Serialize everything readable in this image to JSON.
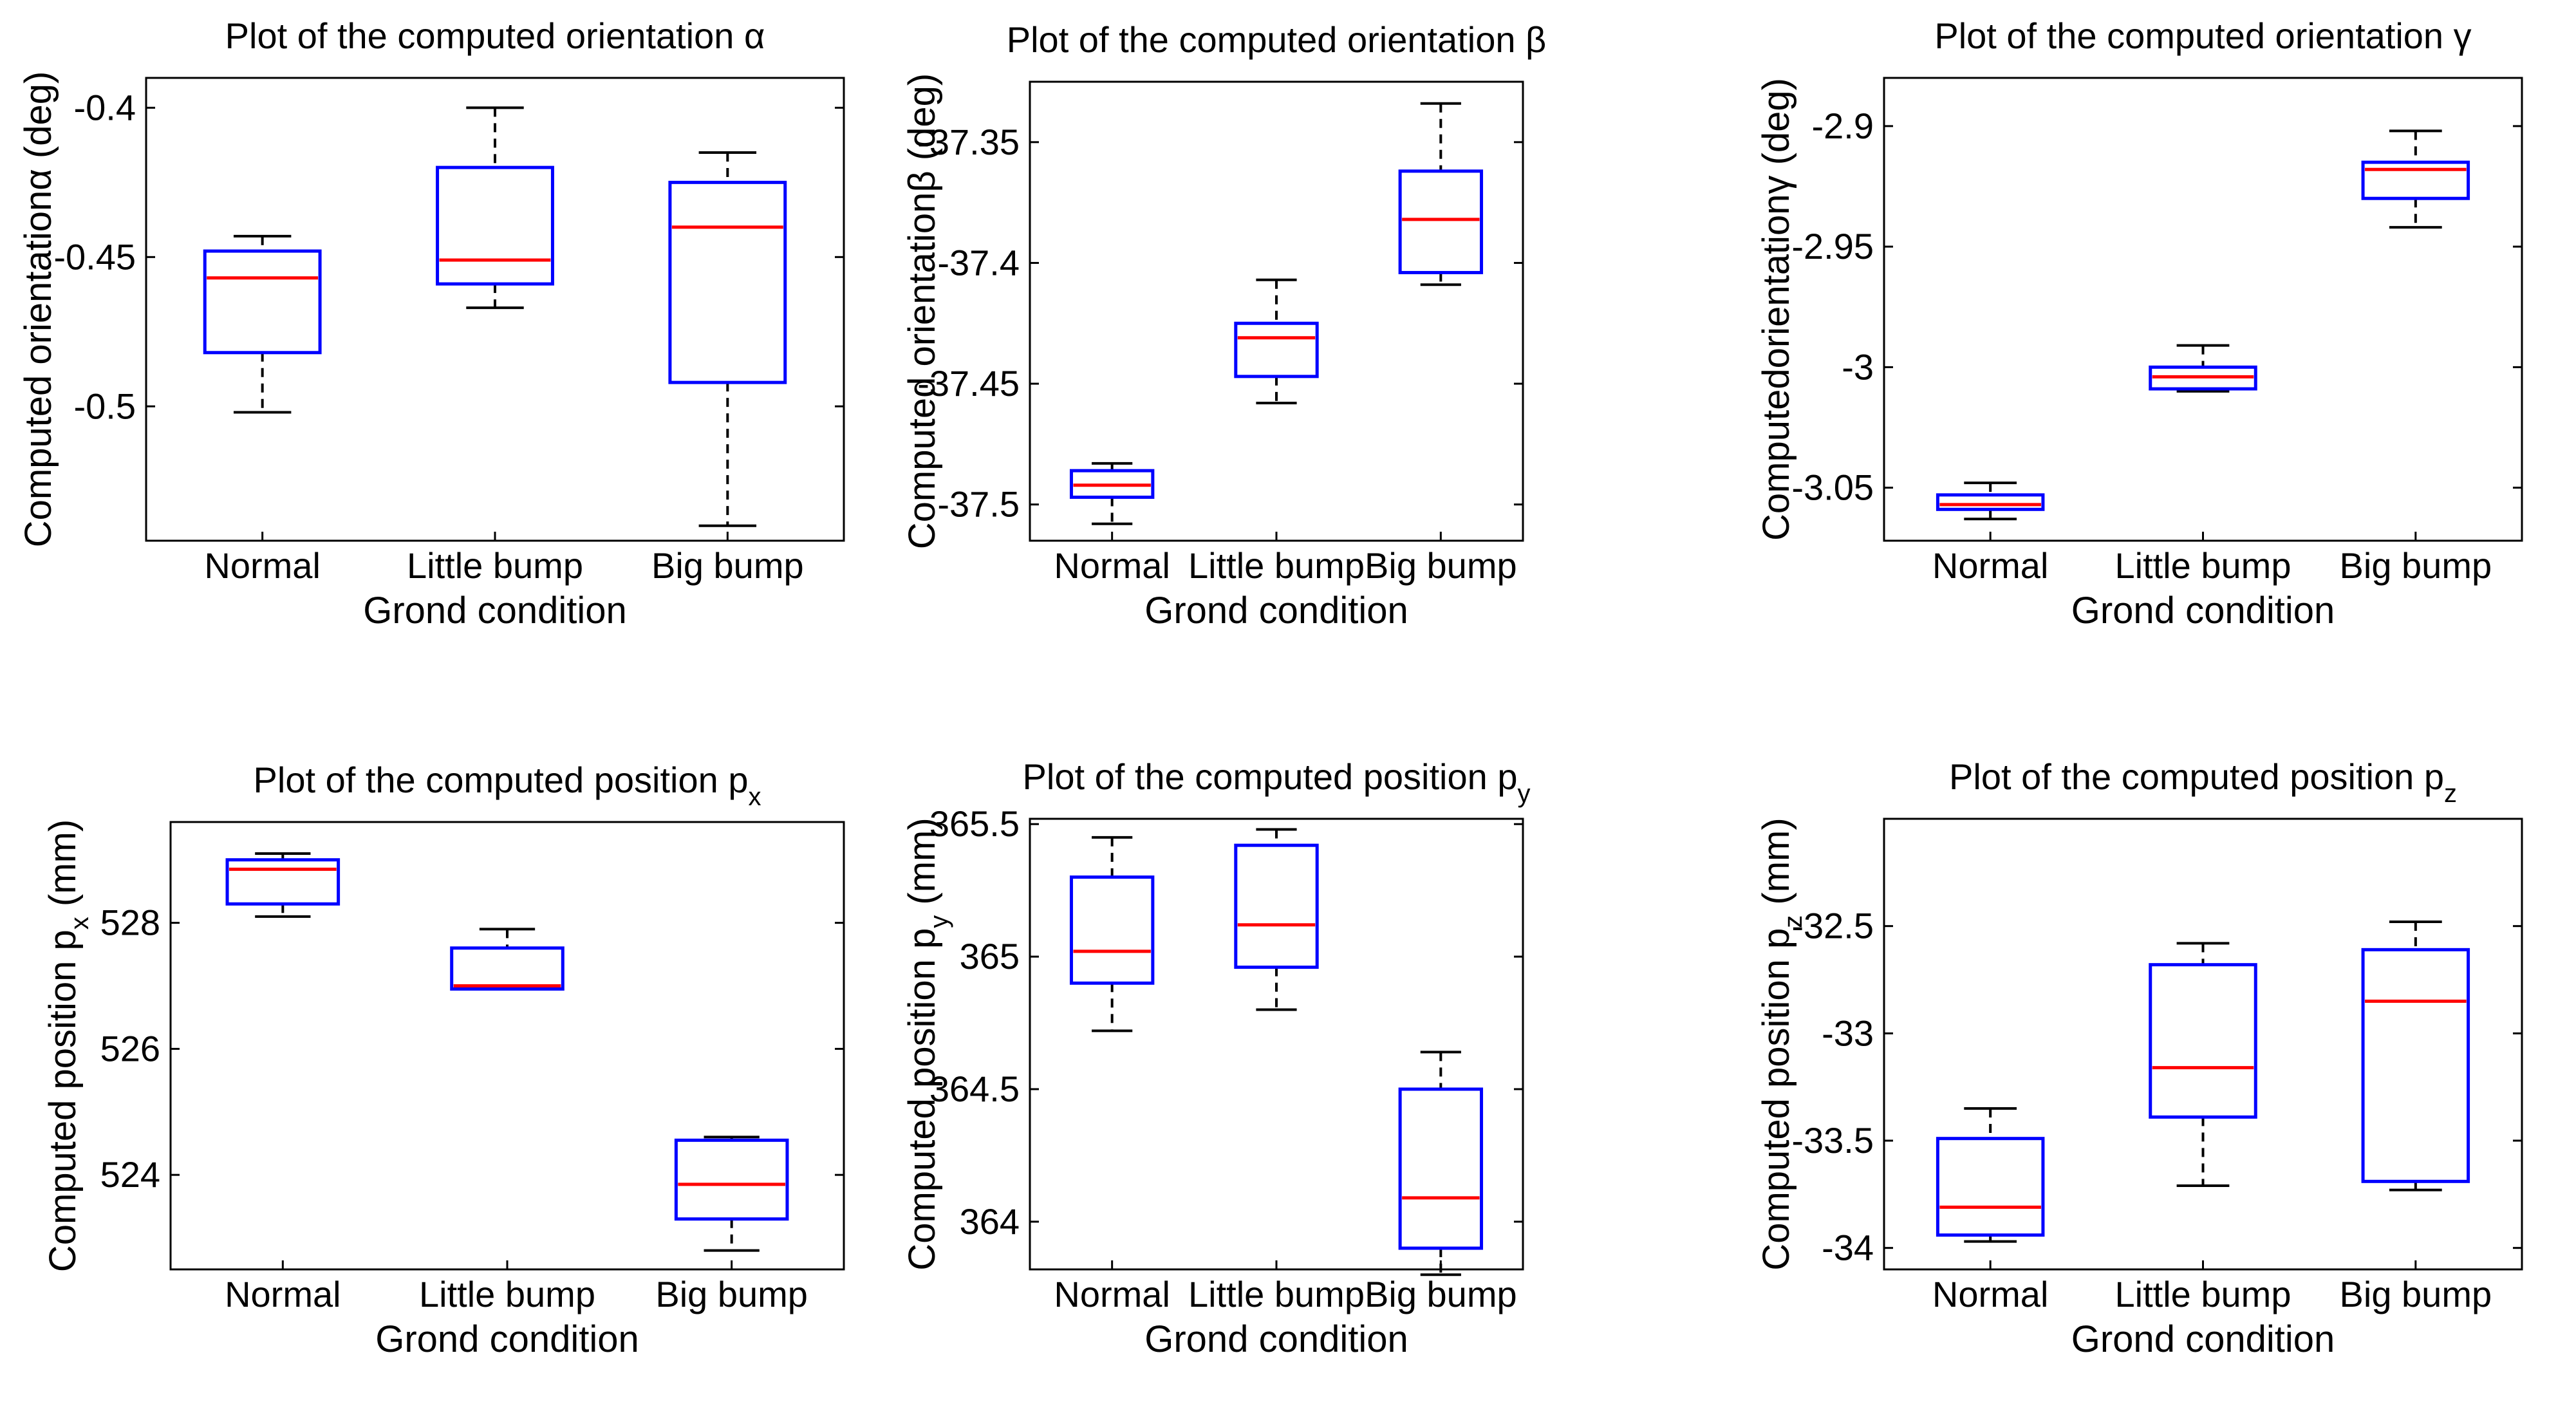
{
  "chart_data": [
    {
      "type": "box",
      "title": "Plot of the computed orientation α",
      "xlabel": "Grond condition",
      "ylabel": "Computed orientationα (deg)",
      "categories": [
        "Normal",
        "Little bump",
        "Big bump"
      ],
      "ylim": [
        -0.545,
        -0.39
      ],
      "yticks": [
        -0.4,
        -0.45,
        -0.5
      ],
      "ytick_labels": [
        "-0.4",
        "-0.45",
        "-0.5"
      ],
      "boxes": [
        {
          "min": -0.502,
          "q1": -0.482,
          "median": -0.457,
          "q3": -0.448,
          "max": -0.443
        },
        {
          "min": -0.467,
          "q1": -0.459,
          "median": -0.451,
          "q3": -0.42,
          "max": -0.4
        },
        {
          "min": -0.54,
          "q1": -0.492,
          "median": -0.44,
          "q3": -0.425,
          "max": -0.415
        }
      ]
    },
    {
      "type": "box",
      "title": "Plot of the computed orientation β",
      "xlabel": "Grond condition",
      "ylabel": "Computed orientationβ (deg)",
      "categories": [
        "Normal",
        "Little bump",
        "Big bump"
      ],
      "ylim": [
        -37.515,
        -37.325
      ],
      "yticks": [
        -37.35,
        -37.4,
        -37.45,
        -37.5
      ],
      "ytick_labels": [
        "-37.35",
        "-37.4",
        "-37.45",
        "-37.5"
      ],
      "boxes": [
        {
          "min": -37.508,
          "q1": -37.497,
          "median": -37.492,
          "q3": -37.486,
          "max": -37.483
        },
        {
          "min": -37.458,
          "q1": -37.447,
          "median": -37.431,
          "q3": -37.425,
          "max": -37.407
        },
        {
          "min": -37.409,
          "q1": -37.404,
          "median": -37.382,
          "q3": -37.362,
          "max": -37.334
        }
      ]
    },
    {
      "type": "box",
      "title": "Plot of the computed orientation γ",
      "xlabel": "Grond condition",
      "ylabel": "Computedorientationγ (deg)",
      "categories": [
        "Normal",
        "Little bump",
        "Big bump"
      ],
      "ylim": [
        -3.072,
        -2.88
      ],
      "yticks": [
        -2.9,
        -2.95,
        -3.0,
        -3.05
      ],
      "ytick_labels": [
        "-2.9",
        "-2.95",
        "-3",
        "-3.05"
      ],
      "boxes": [
        {
          "min": -3.063,
          "q1": -3.059,
          "median": -3.057,
          "q3": -3.053,
          "max": -3.048
        },
        {
          "min": -3.01,
          "q1": -3.009,
          "median": -3.004,
          "q3": -3.0,
          "max": -2.991
        },
        {
          "min": -2.942,
          "q1": -2.93,
          "median": -2.918,
          "q3": -2.915,
          "max": -2.902
        }
      ]
    },
    {
      "type": "box",
      "title": "Plot of the computed position p",
      "title_sub": "x",
      "xlabel": "Grond condition",
      "ylabel": "Computed position p",
      "ylabel_sub": "x",
      "ylabel_suffix": " (mm)",
      "categories": [
        "Normal",
        "Little bump",
        "Big bump"
      ],
      "ylim": [
        522.5,
        529.6
      ],
      "yticks": [
        528,
        526,
        524
      ],
      "ytick_labels": [
        "528",
        "526",
        "524"
      ],
      "boxes": [
        {
          "min": 528.1,
          "q1": 528.3,
          "median": 528.85,
          "q3": 529.0,
          "max": 529.1
        },
        {
          "min": 526.95,
          "q1": 526.95,
          "median": 527.0,
          "q3": 527.6,
          "max": 527.9
        },
        {
          "min": 522.8,
          "q1": 523.3,
          "median": 523.85,
          "q3": 524.55,
          "max": 524.6
        }
      ]
    },
    {
      "type": "box",
      "title": "Plot of the computed position p",
      "title_sub": "y",
      "xlabel": "Grond condition",
      "ylabel": "Computed position p",
      "ylabel_sub": "y",
      "ylabel_suffix": " (mm)",
      "categories": [
        "Normal",
        "Little bump",
        "Big bump"
      ],
      "ylim": [
        363.82,
        365.52
      ],
      "yticks": [
        365.5,
        365,
        364.5,
        364
      ],
      "ytick_labels": [
        "365.5",
        "365",
        "364.5",
        "364"
      ],
      "boxes": [
        {
          "min": 364.72,
          "q1": 364.9,
          "median": 365.02,
          "q3": 365.3,
          "max": 365.45
        },
        {
          "min": 364.8,
          "q1": 364.96,
          "median": 365.12,
          "q3": 365.42,
          "max": 365.48
        },
        {
          "min": 363.8,
          "q1": 363.9,
          "median": 364.09,
          "q3": 364.5,
          "max": 364.64
        }
      ]
    },
    {
      "type": "box",
      "title": "Plot of the computed position p",
      "title_sub": "z",
      "xlabel": "Grond condition",
      "ylabel": "Computed position p",
      "ylabel_sub": "z",
      "ylabel_suffix": " (mm)",
      "categories": [
        "Normal",
        "Little bump",
        "Big bump"
      ],
      "ylim": [
        -34.1,
        -32.0
      ],
      "yticks": [
        -32.5,
        -33,
        -33.5,
        -34
      ],
      "ytick_labels": [
        "-32.5",
        "-33",
        "-33.5",
        "-34"
      ],
      "boxes": [
        {
          "min": -33.97,
          "q1": -33.94,
          "median": -33.81,
          "q3": -33.49,
          "max": -33.35
        },
        {
          "min": -33.71,
          "q1": -33.39,
          "median": -33.16,
          "q3": -32.68,
          "max": -32.58
        },
        {
          "min": -33.73,
          "q1": -33.69,
          "median": -32.85,
          "q3": -32.61,
          "max": -32.48
        }
      ]
    }
  ]
}
